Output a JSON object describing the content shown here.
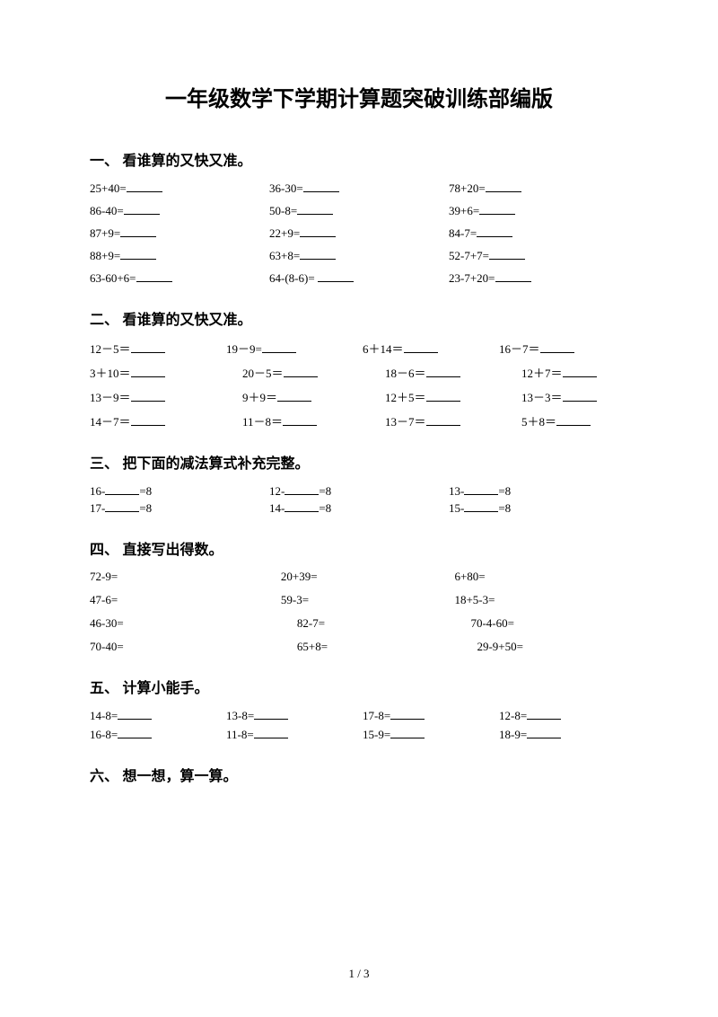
{
  "title": "一年级数学下学期计算题突破训练部编版",
  "page_number": "1 / 3",
  "sections": {
    "s1": {
      "heading": "一、 看谁算的又快又准。",
      "items": [
        "25+40=",
        "36-30=",
        "78+20=",
        "86-40=",
        "50-8=",
        "39+6=",
        "87+9=",
        "22+9=",
        "84-7=",
        "88+9=",
        "63+8=",
        "52-7+7=",
        "63-60+6=",
        "64-(8-6)= ",
        "23-7+20="
      ]
    },
    "s2": {
      "heading": "二、 看谁算的又快又准。",
      "items": [
        "12－5＝",
        "19－9=",
        "6＋14＝",
        "16－7＝",
        "3＋10＝",
        "20－5＝",
        "18－6＝",
        "12＋7＝",
        "13－9＝",
        "9＋9＝",
        "12＋5＝",
        "13－3＝",
        "14－7＝",
        "11－8＝",
        "13－7＝",
        "5＋8＝"
      ]
    },
    "s3": {
      "heading": "三、 把下面的减法算式补充完整。",
      "items": [
        {
          "pre": "16-",
          "post": "=8"
        },
        {
          "pre": "12-",
          "post": "=8"
        },
        {
          "pre": "13-",
          "post": "=8"
        },
        {
          "pre": "17-",
          "post": "=8"
        },
        {
          "pre": "14-",
          "post": "=8"
        },
        {
          "pre": "15-",
          "post": "=8"
        }
      ]
    },
    "s4": {
      "heading": "四、 直接写出得数。",
      "items": [
        "72-9=",
        "20+39=",
        "6+80=",
        "47-6=",
        "59-3=",
        "18+5-3=",
        "46-30=",
        "82-7=",
        "70-4-60=",
        "70-40=",
        "65+8=",
        "29-9+50="
      ]
    },
    "s5": {
      "heading": "五、 计算小能手。",
      "items": [
        "14-8=",
        "13-8=",
        "17-8=",
        "12-8=",
        "16-8=",
        "11-8=",
        "15-9=",
        "18-9="
      ]
    },
    "s6": {
      "heading": "六、 想一想，算一算。"
    }
  }
}
